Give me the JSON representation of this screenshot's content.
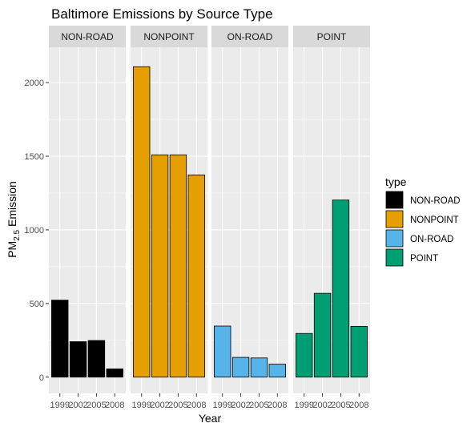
{
  "chart_data": {
    "type": "bar",
    "title": "Baltimore Emissions by Source Type",
    "xlabel": "Year",
    "ylabel": "PM2.5 Emission",
    "ylabel_main": "PM",
    "ylabel_sub": "2.5",
    "ylabel_rest": " Emission",
    "categories": [
      "1999",
      "2002",
      "2005",
      "2008"
    ],
    "y_ticks": [
      0,
      500,
      1000,
      1500,
      2000
    ],
    "y_tick_labels": [
      "0",
      "500",
      "1000",
      "1500",
      "2000"
    ],
    "ylim": [
      -110,
      2240
    ],
    "grid": true,
    "legend_title": "type",
    "legend_position": "right",
    "facets": [
      {
        "name": "NON-ROAD",
        "color": "#000000",
        "values": [
          522.94,
          240.85,
          248.93,
          55.82
        ]
      },
      {
        "name": "NONPOINT",
        "color": "#E69F00",
        "values": [
          2107.63,
          1509.5,
          1509.5,
          1373.21
        ]
      },
      {
        "name": "ON-ROAD",
        "color": "#56B4E9",
        "values": [
          346.82,
          134.31,
          130.43,
          88.28
        ]
      },
      {
        "name": "POINT",
        "color": "#009E73",
        "values": [
          296.8,
          569.26,
          1202.49,
          344.98
        ]
      }
    ],
    "colors": {
      "panel_bg": "#EBEBEB",
      "strip_bg": "#D9D9D9",
      "grid_major": "#FFFFFF",
      "bar_border": "#000000"
    }
  }
}
